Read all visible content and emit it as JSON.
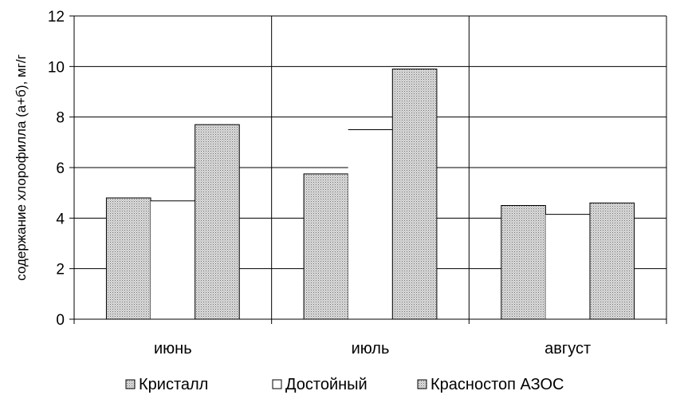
{
  "chart_data": {
    "type": "bar",
    "categories": [
      "июнь",
      "июль",
      "август"
    ],
    "series": [
      {
        "name": "Кристалл",
        "values": [
          4.8,
          5.75,
          4.5
        ],
        "pattern": "dots"
      },
      {
        "name": "Достойный",
        "values": [
          4.68,
          7.5,
          4.15
        ],
        "pattern": "none"
      },
      {
        "name": "Красностоп АЗОС",
        "values": [
          7.7,
          9.9,
          4.6
        ],
        "pattern": "dots"
      }
    ],
    "yticks": [
      "0",
      "2",
      "4",
      "6",
      "8",
      "10",
      "12"
    ],
    "ylim": [
      0,
      12
    ],
    "ylabel": "содержание хлорофилла (а+б), мг/г",
    "xlabel": "",
    "grid": true,
    "legend_position": "bottom",
    "colors": {
      "bar_fill": "#d4d4d4",
      "dot": "#7a7a7a",
      "white": "#ffffff",
      "line": "#000000"
    }
  }
}
